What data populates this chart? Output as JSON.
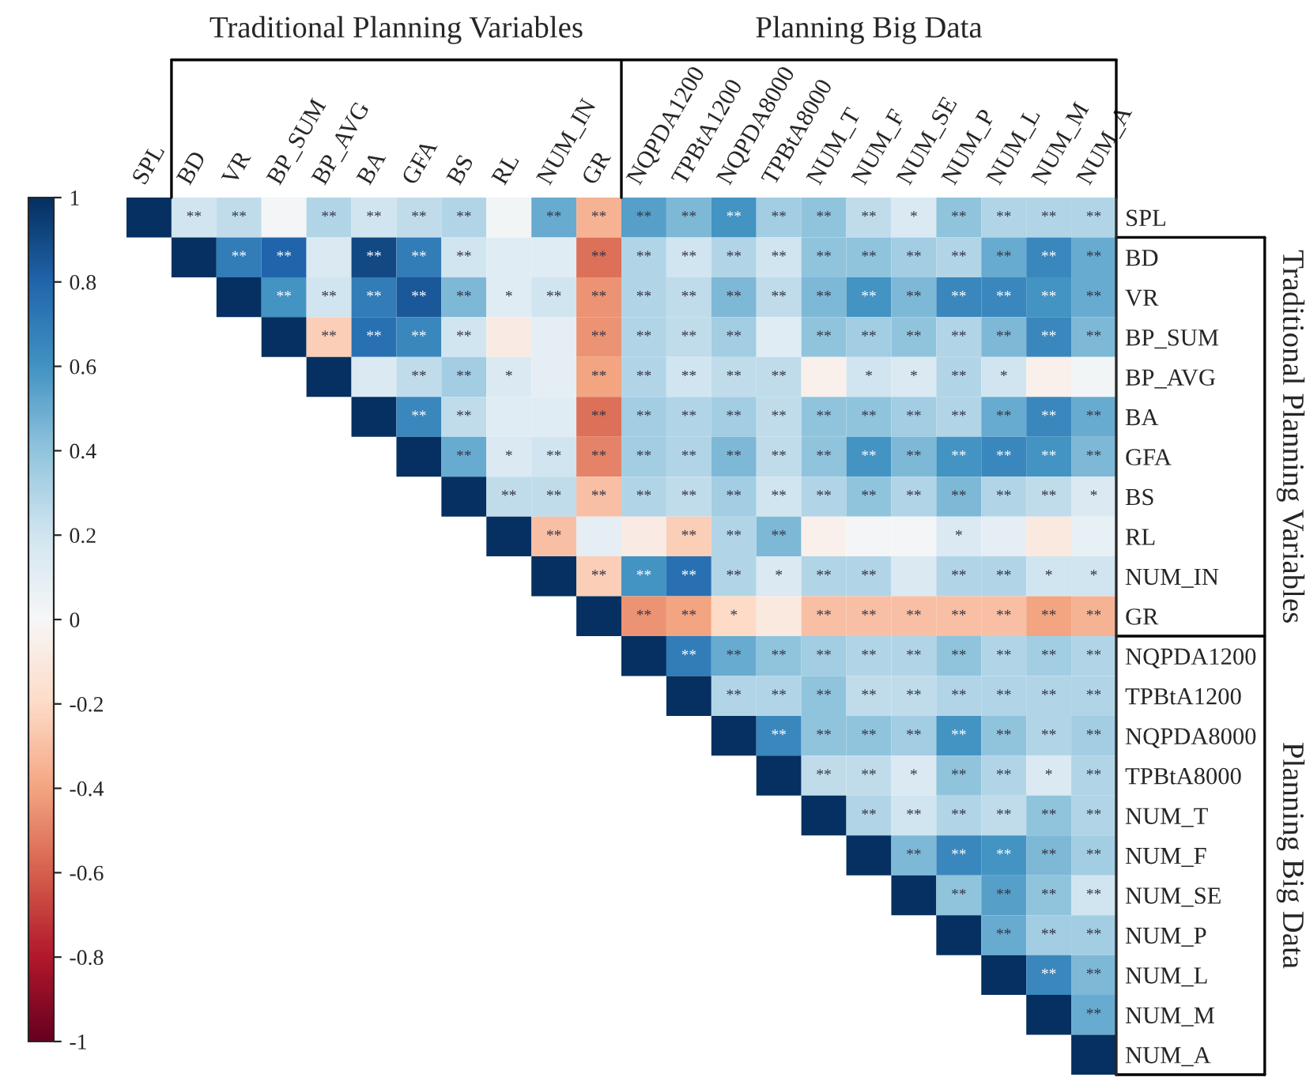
{
  "chart_data": {
    "type": "heatmap",
    "categories": [
      "SPL",
      "BD",
      "VR",
      "BP_SUM",
      "BP_AVG",
      "BA",
      "GFA",
      "BS",
      "RL",
      "NUM_IN",
      "GR",
      "NQPDA1200",
      "TPBtA1200",
      "NQPDA8000",
      "TPBtA8000",
      "NUM_T",
      "NUM_F",
      "NUM_SE",
      "NUM_P",
      "NUM_L",
      "NUM_M",
      "NUM_A"
    ],
    "y_categories": [
      "SPL",
      "BD",
      "VR",
      "BP_SUM",
      "BP_AVG",
      "BA",
      "GFA",
      "BS",
      "RL",
      "NUM_IN",
      "GR",
      "NQPDA1200",
      "TPBtA1200",
      "NQPDA8000",
      "TPBtA8000",
      "NUM_T",
      "NUM_F",
      "NUM_SE",
      "NUM_P",
      "NUM_L",
      "NUM_M",
      "NUM_A"
    ],
    "cells": [
      [
        1,
        0.2,
        0.25,
        0.02,
        0.3,
        0.2,
        0.25,
        0.3,
        0.03,
        0.5,
        -0.35,
        0.55,
        0.45,
        0.6,
        0.35,
        0.4,
        0.25,
        0.15,
        0.4,
        0.3,
        0.3,
        0.3
      ],
      [
        null,
        1,
        0.7,
        0.8,
        0.15,
        0.9,
        0.7,
        0.2,
        0.12,
        0.12,
        -0.55,
        0.3,
        0.2,
        0.3,
        0.2,
        0.4,
        0.4,
        0.35,
        0.3,
        0.5,
        0.65,
        0.5
      ],
      [
        null,
        null,
        1,
        0.6,
        0.2,
        0.7,
        0.85,
        0.45,
        0.12,
        0.2,
        -0.45,
        0.3,
        0.25,
        0.45,
        0.25,
        0.45,
        0.6,
        0.45,
        0.65,
        0.65,
        0.6,
        0.5
      ],
      [
        null,
        null,
        null,
        1,
        -0.25,
        0.75,
        0.65,
        0.2,
        -0.08,
        0.1,
        -0.45,
        0.3,
        0.25,
        0.35,
        0.12,
        0.4,
        0.35,
        0.4,
        0.3,
        0.45,
        0.65,
        0.45
      ],
      [
        null,
        null,
        null,
        null,
        1,
        0.15,
        0.25,
        0.35,
        0.15,
        0.1,
        -0.4,
        0.3,
        0.2,
        0.25,
        0.25,
        -0.05,
        0.2,
        0.15,
        0.3,
        0.2,
        -0.05,
        0.03
      ],
      [
        null,
        null,
        null,
        null,
        null,
        1,
        0.65,
        0.25,
        0.12,
        0.12,
        -0.55,
        0.35,
        0.3,
        0.35,
        0.25,
        0.4,
        0.4,
        0.35,
        0.3,
        0.5,
        0.65,
        0.5
      ],
      [
        null,
        null,
        null,
        null,
        null,
        null,
        1,
        0.5,
        0.15,
        0.2,
        -0.5,
        0.35,
        0.3,
        0.45,
        0.25,
        0.4,
        0.6,
        0.45,
        0.6,
        0.65,
        0.6,
        0.45
      ],
      [
        null,
        null,
        null,
        null,
        null,
        null,
        null,
        1,
        0.25,
        0.25,
        -0.3,
        0.3,
        0.25,
        0.35,
        0.2,
        0.3,
        0.4,
        0.3,
        0.45,
        0.3,
        0.25,
        0.15
      ],
      [
        null,
        null,
        null,
        null,
        null,
        null,
        null,
        null,
        1,
        -0.3,
        0.1,
        -0.08,
        -0.25,
        0.3,
        0.45,
        -0.05,
        0.02,
        0.02,
        0.15,
        0.1,
        -0.1,
        0.08
      ],
      [
        null,
        null,
        null,
        null,
        null,
        null,
        null,
        null,
        null,
        1,
        -0.25,
        0.6,
        0.75,
        0.3,
        0.15,
        0.3,
        0.3,
        0.15,
        0.3,
        0.3,
        0.2,
        0.2
      ],
      [
        null,
        null,
        null,
        null,
        null,
        null,
        null,
        null,
        null,
        null,
        1,
        -0.45,
        -0.4,
        -0.2,
        -0.1,
        -0.3,
        -0.3,
        -0.3,
        -0.3,
        -0.3,
        -0.4,
        -0.35
      ],
      [
        null,
        null,
        null,
        null,
        null,
        null,
        null,
        null,
        null,
        null,
        null,
        1,
        0.7,
        0.5,
        0.4,
        0.35,
        0.3,
        0.3,
        0.4,
        0.3,
        0.35,
        0.3
      ],
      [
        null,
        null,
        null,
        null,
        null,
        null,
        null,
        null,
        null,
        null,
        null,
        null,
        1,
        0.3,
        0.3,
        0.4,
        0.25,
        0.25,
        0.3,
        0.3,
        0.3,
        0.3
      ],
      [
        null,
        null,
        null,
        null,
        null,
        null,
        null,
        null,
        null,
        null,
        null,
        null,
        null,
        1,
        0.65,
        0.4,
        0.4,
        0.35,
        0.6,
        0.4,
        0.3,
        0.35
      ],
      [
        null,
        null,
        null,
        null,
        null,
        null,
        null,
        null,
        null,
        null,
        null,
        null,
        null,
        null,
        1,
        0.25,
        0.25,
        0.15,
        0.4,
        0.3,
        0.15,
        0.3
      ],
      [
        null,
        null,
        null,
        null,
        null,
        null,
        null,
        null,
        null,
        null,
        null,
        null,
        null,
        null,
        null,
        1,
        0.3,
        0.2,
        0.3,
        0.25,
        0.4,
        0.3
      ],
      [
        null,
        null,
        null,
        null,
        null,
        null,
        null,
        null,
        null,
        null,
        null,
        null,
        null,
        null,
        null,
        null,
        1,
        0.45,
        0.65,
        0.6,
        0.45,
        0.35
      ],
      [
        null,
        null,
        null,
        null,
        null,
        null,
        null,
        null,
        null,
        null,
        null,
        null,
        null,
        null,
        null,
        null,
        null,
        1,
        0.4,
        0.55,
        0.4,
        0.2
      ],
      [
        null,
        null,
        null,
        null,
        null,
        null,
        null,
        null,
        null,
        null,
        null,
        null,
        null,
        null,
        null,
        null,
        null,
        null,
        1,
        0.5,
        0.35,
        0.35
      ],
      [
        null,
        null,
        null,
        null,
        null,
        null,
        null,
        null,
        null,
        null,
        null,
        null,
        null,
        null,
        null,
        null,
        null,
        null,
        null,
        1,
        0.65,
        0.45
      ],
      [
        null,
        null,
        null,
        null,
        null,
        null,
        null,
        null,
        null,
        null,
        null,
        null,
        null,
        null,
        null,
        null,
        null,
        null,
        null,
        null,
        1,
        0.5
      ],
      [
        null,
        null,
        null,
        null,
        null,
        null,
        null,
        null,
        null,
        null,
        null,
        null,
        null,
        null,
        null,
        null,
        null,
        null,
        null,
        null,
        null,
        1
      ]
    ],
    "cell_labels": [
      [
        null,
        "**",
        "**",
        null,
        "**",
        "**",
        "**",
        "**",
        null,
        "**",
        "**",
        "**",
        "**",
        "**",
        "**",
        "**",
        "**",
        "*",
        "**",
        "**",
        "**",
        "**"
      ],
      [
        null,
        null,
        "**",
        "**",
        null,
        "**",
        "**",
        "**",
        null,
        null,
        "**",
        "**",
        "**",
        "**",
        "**",
        "**",
        "**",
        "**",
        "**",
        "**",
        "**",
        "**"
      ],
      [
        null,
        null,
        null,
        "**",
        "**",
        "**",
        "**",
        "**",
        "*",
        "**",
        "**",
        "**",
        "**",
        "**",
        "**",
        "**",
        "**",
        "**",
        "**",
        "**",
        "**",
        "**"
      ],
      [
        null,
        null,
        null,
        null,
        "**",
        "**",
        "**",
        "**",
        null,
        null,
        "**",
        "**",
        "**",
        "**",
        null,
        "**",
        "**",
        "**",
        "**",
        "**",
        "**",
        "**"
      ],
      [
        null,
        null,
        null,
        null,
        null,
        null,
        "**",
        "**",
        "*",
        null,
        "**",
        "**",
        "**",
        "**",
        "**",
        null,
        "*",
        "*",
        "**",
        "*",
        null,
        null
      ],
      [
        null,
        null,
        null,
        null,
        null,
        null,
        "**",
        "**",
        null,
        null,
        "**",
        "**",
        "**",
        "**",
        "**",
        "**",
        "**",
        "**",
        "**",
        "**",
        "**",
        "**"
      ],
      [
        null,
        null,
        null,
        null,
        null,
        null,
        null,
        "**",
        "*",
        "**",
        "**",
        "**",
        "**",
        "**",
        "**",
        "**",
        "**",
        "**",
        "**",
        "**",
        "**",
        "**"
      ],
      [
        null,
        null,
        null,
        null,
        null,
        null,
        null,
        null,
        "**",
        "**",
        "**",
        "**",
        "**",
        "**",
        "**",
        "**",
        "**",
        "**",
        "**",
        "**",
        "**",
        "*"
      ],
      [
        null,
        null,
        null,
        null,
        null,
        null,
        null,
        null,
        null,
        "**",
        null,
        null,
        "**",
        "**",
        "**",
        null,
        null,
        null,
        "*",
        null,
        null,
        null
      ],
      [
        null,
        null,
        null,
        null,
        null,
        null,
        null,
        null,
        null,
        null,
        "**",
        "**",
        "**",
        "**",
        "*",
        "**",
        "**",
        null,
        "**",
        "**",
        "*",
        "*"
      ],
      [
        null,
        null,
        null,
        null,
        null,
        null,
        null,
        null,
        null,
        null,
        null,
        "**",
        "**",
        "*",
        null,
        "**",
        "**",
        "**",
        "**",
        "**",
        "**",
        "**"
      ],
      [
        null,
        null,
        null,
        null,
        null,
        null,
        null,
        null,
        null,
        null,
        null,
        null,
        "**",
        "**",
        "**",
        "**",
        "**",
        "**",
        "**",
        "**",
        "**",
        "**"
      ],
      [
        null,
        null,
        null,
        null,
        null,
        null,
        null,
        null,
        null,
        null,
        null,
        null,
        null,
        "**",
        "**",
        "**",
        "**",
        "**",
        "**",
        "**",
        "**",
        "**"
      ],
      [
        null,
        null,
        null,
        null,
        null,
        null,
        null,
        null,
        null,
        null,
        null,
        null,
        null,
        null,
        "**",
        "**",
        "**",
        "**",
        "**",
        "**",
        "**",
        "**"
      ],
      [
        null,
        null,
        null,
        null,
        null,
        null,
        null,
        null,
        null,
        null,
        null,
        null,
        null,
        null,
        null,
        "**",
        "**",
        "*",
        "**",
        "**",
        "*",
        "**"
      ],
      [
        null,
        null,
        null,
        null,
        null,
        null,
        null,
        null,
        null,
        null,
        null,
        null,
        null,
        null,
        null,
        null,
        "**",
        "**",
        "**",
        "**",
        "**",
        "**"
      ],
      [
        null,
        null,
        null,
        null,
        null,
        null,
        null,
        null,
        null,
        null,
        null,
        null,
        null,
        null,
        null,
        null,
        null,
        "**",
        "**",
        "**",
        "**",
        "**"
      ],
      [
        null,
        null,
        null,
        null,
        null,
        null,
        null,
        null,
        null,
        null,
        null,
        null,
        null,
        null,
        null,
        null,
        null,
        null,
        "**",
        "**",
        "**",
        "**"
      ],
      [
        null,
        null,
        null,
        null,
        null,
        null,
        null,
        null,
        null,
        null,
        null,
        null,
        null,
        null,
        null,
        null,
        null,
        null,
        null,
        "**",
        "**",
        "**"
      ],
      [
        null,
        null,
        null,
        null,
        null,
        null,
        null,
        null,
        null,
        null,
        null,
        null,
        null,
        null,
        null,
        null,
        null,
        null,
        null,
        null,
        "**",
        "**"
      ],
      [
        null,
        null,
        null,
        null,
        null,
        null,
        null,
        null,
        null,
        null,
        null,
        null,
        null,
        null,
        null,
        null,
        null,
        null,
        null,
        null,
        null,
        "**"
      ],
      [
        null,
        null,
        null,
        null,
        null,
        null,
        null,
        null,
        null,
        null,
        null,
        null,
        null,
        null,
        null,
        null,
        null,
        null,
        null,
        null,
        null,
        null
      ]
    ],
    "clim": [
      -1,
      1
    ],
    "cticks": [
      -1,
      -0.8,
      -0.6,
      -0.4,
      -0.2,
      0,
      0.2,
      0.4,
      0.6,
      0.8,
      1
    ],
    "annotations": [
      "Traditional Planning Variables",
      "Planning Big Data",
      "Traditional Planning Variables",
      "Planning Big Data"
    ]
  }
}
